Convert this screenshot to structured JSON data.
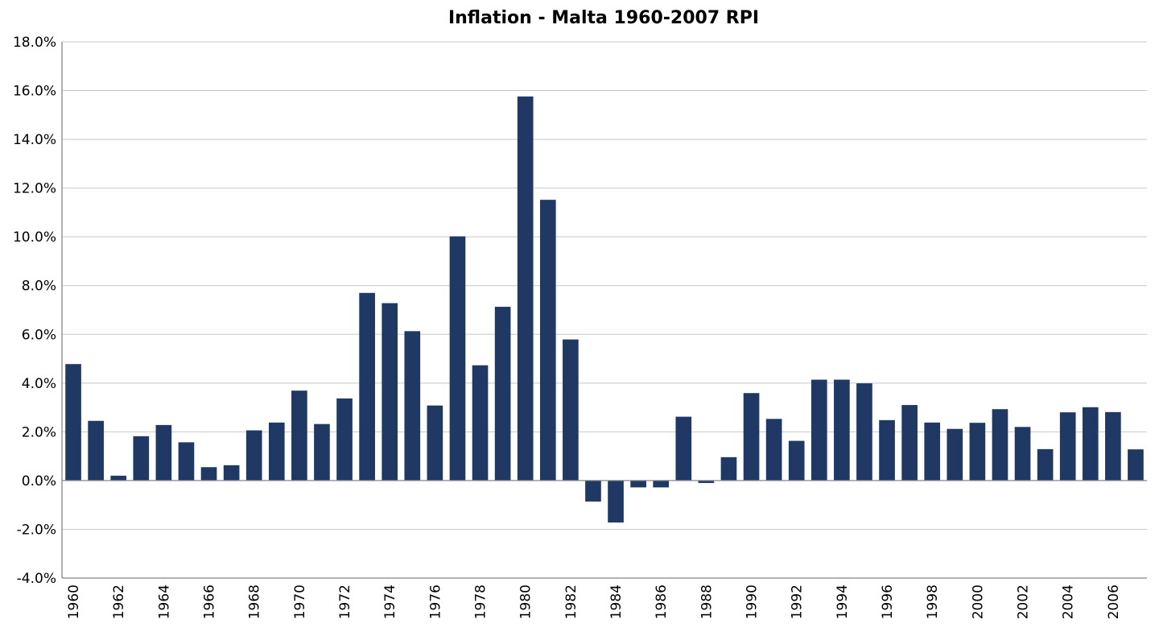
{
  "chart_data": {
    "type": "bar",
    "title": "Inflation - Malta 1960-2007 RPI",
    "xlabel": "",
    "ylabel": "",
    "ylim": [
      -4.0,
      18.0
    ],
    "y_ticks": [
      "-4.0%",
      "-2.0%",
      "0.0%",
      "2.0%",
      "4.0%",
      "6.0%",
      "8.0%",
      "10.0%",
      "12.0%",
      "14.0%",
      "16.0%",
      "18.0%"
    ],
    "y_tick_values": [
      -4,
      -2,
      0,
      2,
      4,
      6,
      8,
      10,
      12,
      14,
      16,
      18
    ],
    "x_tick_labels": [
      "1960",
      "1962",
      "1964",
      "1966",
      "1968",
      "1970",
      "1972",
      "1974",
      "1976",
      "1978",
      "1980",
      "1982",
      "1984",
      "1986",
      "1988",
      "1990",
      "1992",
      "1994",
      "1996",
      "1998",
      "2000",
      "2002",
      "2004",
      "2006"
    ],
    "grid": true,
    "legend": "none",
    "bar_color": "#203864",
    "categories": [
      "1960",
      "1961",
      "1962",
      "1963",
      "1964",
      "1965",
      "1966",
      "1967",
      "1968",
      "1969",
      "1970",
      "1971",
      "1972",
      "1973",
      "1974",
      "1975",
      "1976",
      "1977",
      "1978",
      "1979",
      "1980",
      "1981",
      "1982",
      "1983",
      "1984",
      "1985",
      "1986",
      "1987",
      "1988",
      "1989",
      "1990",
      "1991",
      "1992",
      "1993",
      "1994",
      "1995",
      "1996",
      "1997",
      "1998",
      "1999",
      "2000",
      "2001",
      "2002",
      "2003",
      "2004",
      "2005",
      "2006",
      "2007"
    ],
    "values": [
      4.78,
      2.45,
      0.2,
      1.82,
      2.28,
      1.57,
      0.55,
      0.63,
      2.06,
      2.38,
      3.69,
      2.32,
      3.37,
      7.7,
      7.28,
      6.13,
      3.08,
      10.02,
      4.73,
      7.13,
      15.76,
      11.52,
      5.79,
      -0.86,
      -1.72,
      -0.28,
      -0.28,
      2.62,
      -0.1,
      0.96,
      3.59,
      2.53,
      1.63,
      4.14,
      4.14,
      3.99,
      2.48,
      3.1,
      2.38,
      2.12,
      2.37,
      2.93,
      2.2,
      1.29,
      2.8,
      3.01,
      2.81,
      1.28
    ]
  }
}
